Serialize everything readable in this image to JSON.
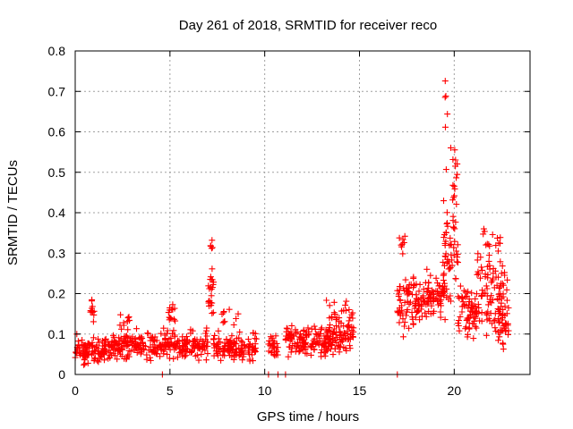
{
  "chart_data": {
    "type": "scatter",
    "title": "Day 261 of 2018, SRMTID for receiver reco",
    "xlabel": "GPS time / hours",
    "ylabel": "SRMTID / TECUs",
    "xlim": [
      0,
      24
    ],
    "ylim": [
      0,
      0.8
    ],
    "xticks": [
      0,
      5,
      10,
      15,
      20
    ],
    "xtick_labels": [
      "0",
      "5",
      "10",
      "15",
      "20"
    ],
    "yticks": [
      0,
      0.1,
      0.2,
      0.3,
      0.4,
      0.5,
      0.6,
      0.7,
      0.8
    ],
    "ytick_labels": [
      "0",
      "0.1",
      "0.2",
      "0.3",
      "0.4",
      "0.5",
      "0.6",
      "0.7",
      "0.8"
    ],
    "grid": true,
    "marker": "+",
    "color": "#ff0000",
    "series": [
      {
        "name": "SRMTID",
        "clusters": [
          {
            "x_range": [
              0.0,
              2.0
            ],
            "y_base": 0.06,
            "y_spread": 0.03,
            "n": 120
          },
          {
            "x_range": [
              0.8,
              1.0
            ],
            "y_base": 0.16,
            "y_spread": 0.03,
            "n": 12
          },
          {
            "x_range": [
              2.0,
              4.3
            ],
            "y_base": 0.07,
            "y_spread": 0.035,
            "n": 130
          },
          {
            "x_range": [
              2.3,
              3.0
            ],
            "y_base": 0.13,
            "y_spread": 0.02,
            "n": 10
          },
          {
            "x_range": [
              4.3,
              7.0
            ],
            "y_base": 0.075,
            "y_spread": 0.035,
            "n": 150
          },
          {
            "x_range": [
              4.9,
              5.3
            ],
            "y_base": 0.15,
            "y_spread": 0.04,
            "n": 14
          },
          {
            "x_range": [
              7.0,
              7.3
            ],
            "y_base": 0.2,
            "y_spread": 0.06,
            "n": 22
          },
          {
            "x_range": [
              7.1,
              7.25
            ],
            "y_base": 0.32,
            "y_spread": 0.03,
            "n": 5
          },
          {
            "x_range": [
              7.3,
              9.6
            ],
            "y_base": 0.065,
            "y_spread": 0.03,
            "n": 130
          },
          {
            "x_range": [
              7.7,
              8.6
            ],
            "y_base": 0.14,
            "y_spread": 0.03,
            "n": 10
          },
          {
            "x_range": [
              10.2,
              10.7
            ],
            "y_base": 0.065,
            "y_spread": 0.03,
            "n": 25
          },
          {
            "x_range": [
              11.1,
              14.7
            ],
            "y_base": 0.085,
            "y_spread": 0.035,
            "n": 210
          },
          {
            "x_range": [
              13.2,
              14.7
            ],
            "y_base": 0.14,
            "y_spread": 0.035,
            "n": 30
          },
          {
            "x_range": [
              17.0,
              18.5
            ],
            "y_base": 0.18,
            "y_spread": 0.06,
            "n": 90
          },
          {
            "x_range": [
              17.1,
              17.4
            ],
            "y_base": 0.33,
            "y_spread": 0.04,
            "n": 8
          },
          {
            "x_range": [
              18.5,
              19.5
            ],
            "y_base": 0.2,
            "y_spread": 0.05,
            "n": 70
          },
          {
            "x_range": [
              19.4,
              20.2
            ],
            "y_base": 0.3,
            "y_spread": 0.12,
            "n": 60
          },
          {
            "x_range": [
              19.5,
              19.7
            ],
            "y_base": 0.62,
            "y_spread": 0.1,
            "n": 6
          },
          {
            "x_range": [
              19.8,
              20.2
            ],
            "y_base": 0.5,
            "y_spread": 0.08,
            "n": 14
          },
          {
            "x_range": [
              20.2,
              21.2
            ],
            "y_base": 0.16,
            "y_spread": 0.06,
            "n": 70
          },
          {
            "x_range": [
              21.2,
              22.8
            ],
            "y_base": 0.2,
            "y_spread": 0.1,
            "n": 100
          },
          {
            "x_range": [
              21.5,
              22.5
            ],
            "y_base": 0.33,
            "y_spread": 0.03,
            "n": 12
          },
          {
            "x_range": [
              22.3,
              22.9
            ],
            "y_base": 0.12,
            "y_spread": 0.05,
            "n": 30
          }
        ],
        "zero_points_x": [
          4.6,
          10.2,
          10.7,
          11.1,
          17.0
        ]
      }
    ]
  }
}
